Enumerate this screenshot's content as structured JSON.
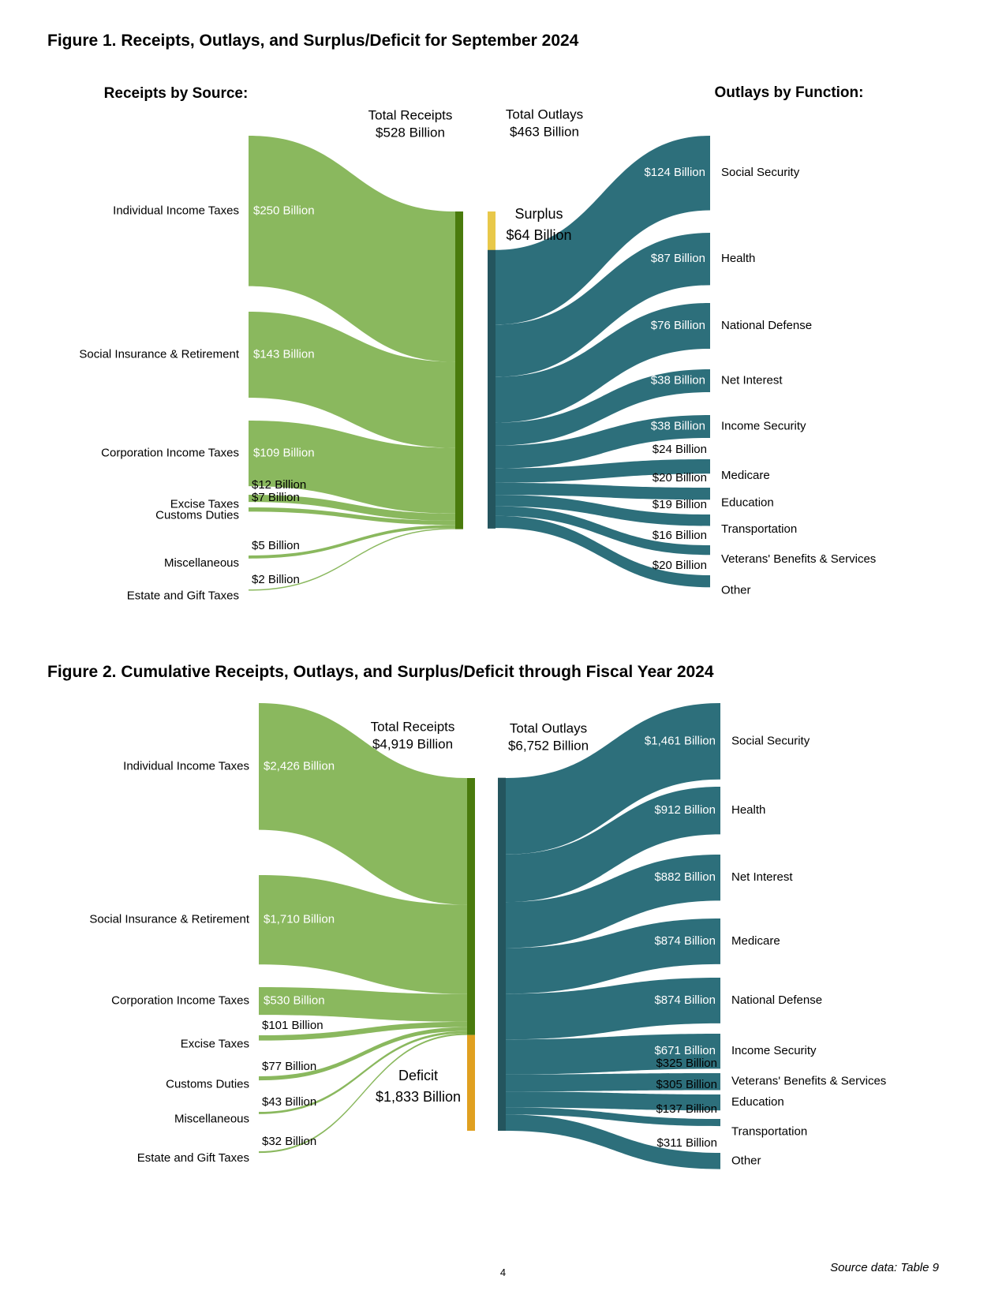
{
  "figures": [
    {
      "title": "Figure 1. Receipts, Outlays, and Surplus/Deficit for September 2024",
      "receipts_heading": "Receipts by Source:",
      "outlays_heading": "Outlays by Function:",
      "total_receipts_label": [
        "Total Receipts",
        "$528 Billion"
      ],
      "total_outlays_label": [
        "Total Outlays",
        "$463 Billion"
      ],
      "balance_label": [
        "Surplus",
        "$64 Billion"
      ],
      "balance_type": "surplus"
    },
    {
      "title": "Figure 2. Cumulative Receipts, Outlays, and Surplus/Deficit through Fiscal Year 2024",
      "receipts_heading": "Receipts by Source:",
      "outlays_heading": "Outlays by Function:",
      "total_receipts_label": [
        "Total Receipts",
        "$4,919 Billion"
      ],
      "total_outlays_label": [
        "Total Outlays",
        "$6,752 Billion"
      ],
      "balance_label": [
        "Deficit",
        "$1,833 Billion"
      ],
      "balance_type": "deficit"
    }
  ],
  "chart_data": [
    {
      "type": "sankey",
      "title": "Figure 1. Receipts, Outlays, and Surplus/Deficit for September 2024",
      "units": "Billions of dollars",
      "total_receipts": 528,
      "total_outlays": 463,
      "balance": {
        "type": "surplus",
        "value": 64
      },
      "receipts": [
        {
          "name": "Individual Income Taxes",
          "value": 250,
          "label": "$250 Billion"
        },
        {
          "name": "Social Insurance & Retirement",
          "value": 143,
          "label": "$143 Billion"
        },
        {
          "name": "Corporation Income Taxes",
          "value": 109,
          "label": "$109 Billion"
        },
        {
          "name": "Excise Taxes",
          "value": 12,
          "label": "$12 Billion"
        },
        {
          "name": "Customs Duties",
          "value": 7,
          "label": "$7 Billion"
        },
        {
          "name": "Miscellaneous",
          "value": 5,
          "label": "$5 Billion"
        },
        {
          "name": "Estate and Gift Taxes",
          "value": 2,
          "label": "$2 Billion"
        }
      ],
      "outlays": [
        {
          "name": "Social Security",
          "value": 124,
          "label": "$124 Billion"
        },
        {
          "name": "Health",
          "value": 87,
          "label": "$87 Billion"
        },
        {
          "name": "National Defense",
          "value": 76,
          "label": "$76 Billion"
        },
        {
          "name": "Net Interest",
          "value": 38,
          "label": "$38 Billion"
        },
        {
          "name": "Income Security",
          "value": 38,
          "label": "$38 Billion"
        },
        {
          "name": "Medicare",
          "value": 24,
          "label": "$24 Billion"
        },
        {
          "name": "Education",
          "value": 20,
          "label": "$20 Billion"
        },
        {
          "name": "Transportation",
          "value": 19,
          "label": "$19 Billion"
        },
        {
          "name": "Veterans' Benefits & Services",
          "value": 16,
          "label": "$16 Billion"
        },
        {
          "name": "Other",
          "value": 20,
          "label": "$20 Billion"
        }
      ],
      "colors": {
        "receipts": "#8ab85e",
        "receipts_bar": "#4a7b0d",
        "outlays": "#2d6f7b",
        "outlays_bar": "#24555e",
        "balance": "#e8c84a"
      }
    },
    {
      "type": "sankey",
      "title": "Figure 2. Cumulative Receipts, Outlays, and Surplus/Deficit through Fiscal Year 2024",
      "units": "Billions of dollars",
      "total_receipts": 4919,
      "total_outlays": 6752,
      "balance": {
        "type": "deficit",
        "value": 1833
      },
      "receipts": [
        {
          "name": "Individual Income Taxes",
          "value": 2426,
          "label": "$2,426 Billion"
        },
        {
          "name": "Social Insurance & Retirement",
          "value": 1710,
          "label": "$1,710 Billion"
        },
        {
          "name": "Corporation Income Taxes",
          "value": 530,
          "label": "$530 Billion"
        },
        {
          "name": "Excise Taxes",
          "value": 101,
          "label": "$101 Billion"
        },
        {
          "name": "Customs Duties",
          "value": 77,
          "label": "$77 Billion"
        },
        {
          "name": "Miscellaneous",
          "value": 43,
          "label": "$43 Billion"
        },
        {
          "name": "Estate and Gift Taxes",
          "value": 32,
          "label": "$32 Billion"
        }
      ],
      "outlays": [
        {
          "name": "Social Security",
          "value": 1461,
          "label": "$1,461 Billion"
        },
        {
          "name": "Health",
          "value": 912,
          "label": "$912 Billion"
        },
        {
          "name": "Net Interest",
          "value": 882,
          "label": "$882 Billion"
        },
        {
          "name": "Medicare",
          "value": 874,
          "label": "$874 Billion"
        },
        {
          "name": "National Defense",
          "value": 874,
          "label": "$874 Billion"
        },
        {
          "name": "Income Security",
          "value": 671,
          "label": "$671 Billion"
        },
        {
          "name": "Veterans' Benefits & Services",
          "value": 325,
          "label": "$325 Billion"
        },
        {
          "name": "Education",
          "value": 305,
          "label": "$305 Billion"
        },
        {
          "name": "Transportation",
          "value": 137,
          "label": "$137 Billion"
        },
        {
          "name": "Other",
          "value": 311,
          "label": "$311 Billion"
        }
      ],
      "colors": {
        "receipts": "#8ab85e",
        "receipts_bar": "#4a7b0d",
        "outlays": "#2d6f7b",
        "outlays_bar": "#24555e",
        "balance": "#e0a020"
      }
    }
  ],
  "footer": {
    "source": "Source data: Table 9",
    "page_number": "4"
  }
}
